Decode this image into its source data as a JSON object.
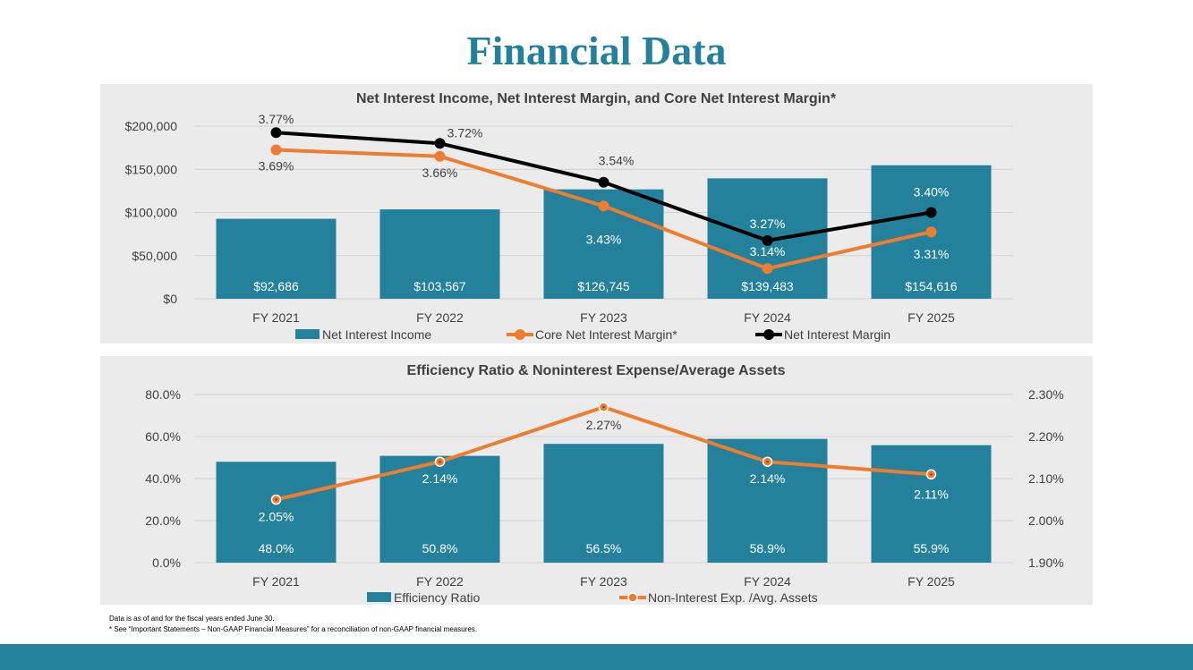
{
  "page": {
    "title": "Financial Data"
  },
  "chart_data": [
    {
      "type": "bar+line",
      "title": "Net Interest Income, Net Interest Margin, and Core Net Interest Margin*",
      "categories": [
        "FY 2021",
        "FY 2022",
        "FY 2023",
        "FY 2024",
        "FY 2025"
      ],
      "y_ticks": [
        "$0",
        "$50,000",
        "$100,000",
        "$150,000",
        "$200,000"
      ],
      "ylim": [
        0,
        200000
      ],
      "bar_series": {
        "name": "Net Interest Income",
        "color": "#23819c",
        "values": [
          92686,
          103567,
          126745,
          139483,
          154616
        ],
        "labels": [
          "$92,686",
          "$103,567",
          "$126,745",
          "$139,483",
          "$154,616"
        ]
      },
      "line_series": [
        {
          "name": "Core Net Interest Margin*",
          "color": "#ed7d31",
          "values": [
            3.69,
            3.66,
            3.43,
            3.14,
            3.31
          ],
          "labels": [
            "3.69%",
            "3.66%",
            "3.43%",
            "3.14%",
            "3.31%"
          ]
        },
        {
          "name": "Net Interest Margin",
          "color": "#000000",
          "values": [
            3.77,
            3.72,
            3.54,
            3.27,
            3.4
          ],
          "labels": [
            "3.77%",
            "3.72%",
            "3.54%",
            "3.27%",
            "3.40%"
          ]
        }
      ],
      "line_ylim": [
        3.0,
        3.8
      ],
      "legend": [
        "Net Interest Income",
        "Core Net Interest Margin*",
        "Net Interest Margin"
      ]
    },
    {
      "type": "bar+line",
      "title": "Efficiency Ratio & Noninterest Expense/Average Assets",
      "categories": [
        "FY 2021",
        "FY 2022",
        "FY 2023",
        "FY 2024",
        "FY 2025"
      ],
      "y_ticks": [
        "0.0%",
        "20.0%",
        "40.0%",
        "60.0%",
        "80.0%"
      ],
      "ylim": [
        0,
        80
      ],
      "y2_ticks": [
        "1.90%",
        "2.00%",
        "2.10%",
        "2.20%",
        "2.30%"
      ],
      "y2lim": [
        1.9,
        2.3
      ],
      "bar_series": {
        "name": "Efficiency Ratio",
        "color": "#23819c",
        "values": [
          48.0,
          50.8,
          56.5,
          58.9,
          55.9
        ],
        "labels": [
          "48.0%",
          "50.8%",
          "56.5%",
          "58.9%",
          "55.9%"
        ]
      },
      "line_series": [
        {
          "name": "Non-Interest Exp. /Avg. Assets",
          "color": "#ed7d31",
          "values": [
            2.05,
            2.14,
            2.27,
            2.14,
            2.11
          ],
          "labels": [
            "2.05%",
            "2.14%",
            "2.27%",
            "2.14%",
            "2.11%"
          ]
        }
      ],
      "legend": [
        "Efficiency Ratio",
        "Non-Interest Exp. /Avg. Assets"
      ]
    }
  ],
  "footnotes": [
    "Data is as of and for the fiscal years ended June 30.",
    "* See “Important Statements – Non-GAAP Financial Measures” for a reconciliation of non-GAAP financial measures."
  ]
}
